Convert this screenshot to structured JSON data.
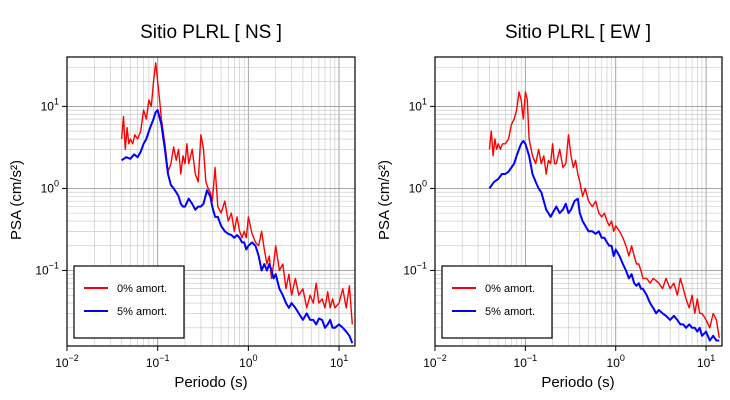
{
  "chart_data": [
    {
      "type": "line",
      "title": "Sitio PLRL [ NS ]",
      "xlabel": "Periodo (s)",
      "ylabel": "PSA (cm/s²)",
      "xscale": "log",
      "yscale": "log",
      "xlim": [
        0.01,
        15
      ],
      "ylim": [
        0.012,
        40
      ],
      "xticks": [
        {
          "base": "10",
          "exp": "−2",
          "value": 0.01
        },
        {
          "base": "10",
          "exp": "−1",
          "value": 0.1
        },
        {
          "base": "10",
          "exp": "0",
          "value": 1
        },
        {
          "base": "10",
          "exp": "1",
          "value": 10
        }
      ],
      "yticks": [
        {
          "base": "10",
          "exp": "−1",
          "value": 0.1
        },
        {
          "base": "10",
          "exp": "0",
          "value": 1
        },
        {
          "base": "10",
          "exp": "1",
          "value": 10
        }
      ],
      "grid": true,
      "legend_position": "bottom-left",
      "series": [
        {
          "name": "0% amort.",
          "color": "#ff0000",
          "x": [
            0.04,
            0.042,
            0.044,
            0.046,
            0.048,
            0.05,
            0.053,
            0.056,
            0.06,
            0.065,
            0.07,
            0.075,
            0.08,
            0.085,
            0.09,
            0.095,
            0.1,
            0.105,
            0.11,
            0.12,
            0.13,
            0.14,
            0.15,
            0.16,
            0.17,
            0.18,
            0.19,
            0.2,
            0.21,
            0.22,
            0.24,
            0.26,
            0.28,
            0.3,
            0.32,
            0.34,
            0.36,
            0.38,
            0.4,
            0.43,
            0.46,
            0.5,
            0.55,
            0.6,
            0.65,
            0.7,
            0.75,
            0.8,
            0.85,
            0.9,
            0.95,
            1.0,
            1.1,
            1.2,
            1.3,
            1.4,
            1.5,
            1.6,
            1.7,
            1.8,
            1.9,
            2.0,
            2.2,
            2.4,
            2.6,
            2.8,
            3.0,
            3.3,
            3.6,
            4.0,
            4.4,
            4.8,
            5.2,
            5.6,
            6.0,
            6.5,
            7.0,
            7.5,
            8.0,
            8.5,
            9.0,
            10.0,
            11.0,
            12.0,
            13.0,
            14.0
          ],
          "y": [
            4.0,
            7.5,
            3.0,
            5.5,
            3.5,
            4.0,
            3.5,
            4.5,
            4.0,
            5.0,
            9.0,
            7.0,
            12.0,
            10.0,
            20.0,
            34.0,
            20.0,
            12.0,
            7.0,
            3.5,
            1.6,
            2.0,
            3.2,
            2.2,
            3.0,
            1.5,
            2.5,
            2.0,
            3.5,
            2.0,
            3.0,
            1.5,
            1.2,
            4.5,
            3.0,
            1.2,
            1.0,
            0.9,
            0.7,
            1.8,
            0.6,
            0.5,
            0.7,
            0.4,
            0.5,
            0.3,
            0.45,
            0.3,
            0.25,
            0.3,
            0.25,
            0.45,
            0.28,
            0.22,
            0.2,
            0.3,
            0.18,
            0.12,
            0.15,
            0.08,
            0.12,
            0.2,
            0.1,
            0.12,
            0.06,
            0.09,
            0.05,
            0.08,
            0.05,
            0.06,
            0.035,
            0.05,
            0.04,
            0.07,
            0.04,
            0.045,
            0.035,
            0.055,
            0.035,
            0.045,
            0.035,
            0.04,
            0.06,
            0.035,
            0.065,
            0.022
          ]
        },
        {
          "name": "5% amort.",
          "color": "#0000ff",
          "x": [
            0.04,
            0.045,
            0.05,
            0.055,
            0.06,
            0.065,
            0.07,
            0.075,
            0.08,
            0.085,
            0.09,
            0.095,
            0.1,
            0.11,
            0.12,
            0.13,
            0.14,
            0.15,
            0.16,
            0.17,
            0.18,
            0.19,
            0.2,
            0.22,
            0.24,
            0.26,
            0.28,
            0.3,
            0.32,
            0.35,
            0.38,
            0.4,
            0.43,
            0.46,
            0.5,
            0.55,
            0.6,
            0.65,
            0.7,
            0.75,
            0.8,
            0.85,
            0.9,
            0.95,
            1.0,
            1.1,
            1.2,
            1.3,
            1.4,
            1.5,
            1.6,
            1.7,
            1.8,
            1.9,
            2.0,
            2.2,
            2.4,
            2.6,
            2.8,
            3.0,
            3.3,
            3.6,
            4.0,
            4.4,
            4.8,
            5.2,
            5.6,
            6.0,
            6.5,
            7.0,
            7.5,
            8.0,
            8.5,
            9.0,
            10.0,
            11.0,
            12.0,
            13.0,
            14.0
          ],
          "y": [
            2.2,
            2.4,
            2.3,
            2.6,
            2.4,
            2.8,
            3.5,
            4.0,
            5.0,
            6.0,
            7.0,
            8.5,
            9.0,
            6.0,
            3.0,
            1.5,
            1.1,
            1.0,
            0.9,
            0.8,
            0.65,
            0.6,
            0.6,
            0.75,
            0.65,
            0.55,
            0.6,
            0.6,
            0.65,
            0.95,
            0.8,
            0.6,
            0.45,
            0.45,
            0.35,
            0.3,
            0.28,
            0.27,
            0.25,
            0.27,
            0.25,
            0.22,
            0.22,
            0.18,
            0.2,
            0.22,
            0.2,
            0.15,
            0.1,
            0.12,
            0.1,
            0.12,
            0.1,
            0.08,
            0.09,
            0.06,
            0.05,
            0.04,
            0.035,
            0.04,
            0.035,
            0.03,
            0.025,
            0.03,
            0.025,
            0.025,
            0.022,
            0.026,
            0.025,
            0.02,
            0.022,
            0.025,
            0.02,
            0.02,
            0.022,
            0.02,
            0.018,
            0.016,
            0.013
          ]
        }
      ]
    },
    {
      "type": "line",
      "title": "Sitio PLRL [ EW ]",
      "xlabel": "Periodo (s)",
      "ylabel": "PSA (cm/s²)",
      "xscale": "log",
      "yscale": "log",
      "xlim": [
        0.01,
        15
      ],
      "ylim": [
        0.012,
        40
      ],
      "xticks": [
        {
          "base": "10",
          "exp": "−2",
          "value": 0.01
        },
        {
          "base": "10",
          "exp": "−1",
          "value": 0.1
        },
        {
          "base": "10",
          "exp": "0",
          "value": 1
        },
        {
          "base": "10",
          "exp": "1",
          "value": 10
        }
      ],
      "yticks": [
        {
          "base": "10",
          "exp": "−1",
          "value": 0.1
        },
        {
          "base": "10",
          "exp": "0",
          "value": 1
        },
        {
          "base": "10",
          "exp": "1",
          "value": 10
        }
      ],
      "grid": true,
      "legend_position": "bottom-left",
      "series": [
        {
          "name": "0% amort.",
          "color": "#ff0000",
          "x": [
            0.04,
            0.042,
            0.044,
            0.046,
            0.048,
            0.05,
            0.053,
            0.056,
            0.06,
            0.065,
            0.07,
            0.075,
            0.08,
            0.085,
            0.09,
            0.095,
            0.1,
            0.105,
            0.11,
            0.12,
            0.13,
            0.14,
            0.15,
            0.16,
            0.17,
            0.18,
            0.19,
            0.2,
            0.21,
            0.22,
            0.24,
            0.26,
            0.28,
            0.3,
            0.32,
            0.34,
            0.36,
            0.38,
            0.4,
            0.43,
            0.46,
            0.5,
            0.55,
            0.6,
            0.65,
            0.7,
            0.75,
            0.8,
            0.85,
            0.9,
            0.95,
            1.0,
            1.1,
            1.2,
            1.3,
            1.4,
            1.5,
            1.6,
            1.7,
            1.8,
            1.9,
            2.0,
            2.2,
            2.4,
            2.6,
            2.8,
            3.0,
            3.3,
            3.6,
            4.0,
            4.4,
            4.8,
            5.2,
            5.6,
            6.0,
            6.5,
            7.0,
            7.5,
            8.0,
            8.5,
            9.0,
            10.0,
            11.0,
            12.0,
            13.0,
            14.0
          ],
          "y": [
            3.0,
            5.0,
            2.5,
            4.0,
            3.0,
            3.5,
            3.0,
            3.5,
            3.5,
            4.0,
            6.0,
            7.0,
            9.0,
            15.0,
            12.0,
            7.0,
            15.0,
            12.0,
            4.0,
            2.5,
            2.0,
            3.0,
            2.0,
            2.5,
            1.5,
            2.2,
            2.0,
            3.5,
            2.0,
            2.0,
            3.0,
            1.8,
            2.0,
            4.5,
            2.5,
            1.8,
            2.2,
            1.5,
            1.2,
            0.8,
            1.0,
            0.7,
            0.6,
            0.7,
            0.5,
            0.45,
            0.5,
            0.4,
            0.35,
            0.4,
            0.3,
            0.35,
            0.3,
            0.25,
            0.2,
            0.15,
            0.2,
            0.15,
            0.12,
            0.12,
            0.1,
            0.08,
            0.08,
            0.07,
            0.08,
            0.075,
            0.07,
            0.06,
            0.08,
            0.06,
            0.07,
            0.05,
            0.08,
            0.06,
            0.045,
            0.035,
            0.05,
            0.03,
            0.045,
            0.03,
            0.03,
            0.025,
            0.02,
            0.03,
            0.025,
            0.015
          ]
        },
        {
          "name": "5% amort.",
          "color": "#0000ff",
          "x": [
            0.04,
            0.045,
            0.05,
            0.055,
            0.06,
            0.065,
            0.07,
            0.075,
            0.08,
            0.085,
            0.09,
            0.095,
            0.1,
            0.11,
            0.12,
            0.13,
            0.14,
            0.15,
            0.16,
            0.17,
            0.18,
            0.19,
            0.2,
            0.22,
            0.24,
            0.26,
            0.28,
            0.3,
            0.32,
            0.35,
            0.38,
            0.4,
            0.43,
            0.46,
            0.5,
            0.55,
            0.6,
            0.65,
            0.7,
            0.75,
            0.8,
            0.85,
            0.9,
            0.95,
            1.0,
            1.1,
            1.2,
            1.3,
            1.4,
            1.5,
            1.6,
            1.7,
            1.8,
            1.9,
            2.0,
            2.2,
            2.4,
            2.6,
            2.8,
            3.0,
            3.3,
            3.6,
            4.0,
            4.4,
            4.8,
            5.2,
            5.6,
            6.0,
            6.5,
            7.0,
            7.5,
            8.0,
            8.5,
            9.0,
            10.0,
            11.0,
            12.0,
            13.0,
            14.0
          ],
          "y": [
            1.0,
            1.2,
            1.3,
            1.5,
            1.5,
            1.6,
            1.8,
            2.0,
            2.5,
            3.0,
            3.5,
            3.8,
            3.5,
            2.5,
            1.5,
            1.2,
            1.0,
            0.9,
            0.7,
            0.55,
            0.5,
            0.45,
            0.5,
            0.6,
            0.5,
            0.55,
            0.65,
            0.5,
            0.55,
            0.7,
            0.75,
            0.5,
            0.4,
            0.35,
            0.3,
            0.3,
            0.28,
            0.3,
            0.25,
            0.25,
            0.22,
            0.2,
            0.2,
            0.15,
            0.18,
            0.15,
            0.12,
            0.1,
            0.08,
            0.09,
            0.07,
            0.065,
            0.07,
            0.06,
            0.06,
            0.05,
            0.04,
            0.035,
            0.03,
            0.033,
            0.03,
            0.028,
            0.025,
            0.028,
            0.025,
            0.022,
            0.022,
            0.02,
            0.022,
            0.02,
            0.02,
            0.018,
            0.02,
            0.016,
            0.018,
            0.014,
            0.016,
            0.014,
            0.014
          ]
        }
      ]
    }
  ]
}
